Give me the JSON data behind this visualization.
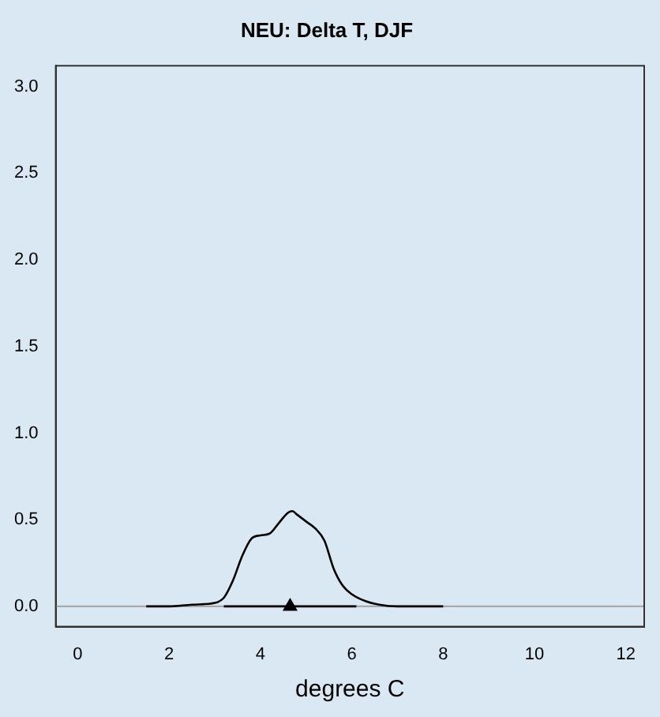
{
  "chart_data": {
    "type": "line",
    "title": "NEU: Delta T, DJF",
    "xlabel": "degrees C",
    "xlim": [
      -0.48,
      12.4
    ],
    "xticks": [
      0,
      2,
      4,
      6,
      8,
      10,
      12
    ],
    "ylim": [
      -0.117,
      3.12
    ],
    "yticks": [
      {
        "value": 0,
        "label": "0.0"
      },
      {
        "value": 0.5,
        "label": "0.5"
      },
      {
        "value": 1.0,
        "label": "1.0"
      },
      {
        "value": 1.5,
        "label": "1.5"
      },
      {
        "value": 2.0,
        "label": "2.0"
      },
      {
        "value": 2.5,
        "label": "2.5"
      },
      {
        "value": 3.0,
        "label": "3.0"
      }
    ],
    "grid": false,
    "legend": false,
    "marker": "none",
    "line_style": "solid",
    "series": [
      {
        "color": "#000000",
        "x": [
          1.5,
          2,
          2.5,
          3,
          3.2,
          3.4,
          3.6,
          3.8,
          4.0,
          4.2,
          4.4,
          4.6,
          4.7,
          4.8,
          5.0,
          5.2,
          5.4,
          5.6,
          5.8,
          6.0,
          6.3,
          6.6,
          7,
          8
        ],
        "values": [
          0,
          0,
          0.01,
          0.02,
          0.05,
          0.15,
          0.29,
          0.39,
          0.41,
          0.42,
          0.48,
          0.54,
          0.55,
          0.53,
          0.49,
          0.45,
          0.38,
          0.22,
          0.12,
          0.07,
          0.03,
          0.01,
          0,
          0
        ]
      },
      {
        "type": "line",
        "color": "#000000",
        "x": [
          3.2,
          6.1
        ],
        "values": [
          0,
          0
        ]
      },
      {
        "type": "scatter",
        "color": "#000000",
        "marker": "triangle",
        "x": [
          4.65
        ],
        "values": [
          0
        ]
      }
    ],
    "ref_lines": [
      {
        "axis": "y",
        "value": 0,
        "color": "#aaaaaa"
      }
    ]
  }
}
